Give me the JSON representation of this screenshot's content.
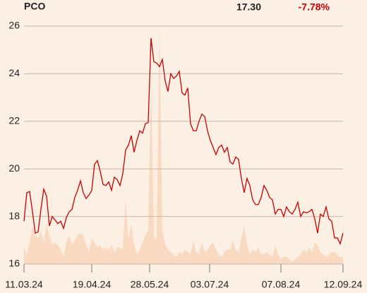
{
  "header": {
    "symbol": "PCO",
    "price": "17.30",
    "change": "-7.78%"
  },
  "chart_data": {
    "type": "line",
    "series": [
      {
        "name": "price",
        "color": "#cc0000",
        "values": [
          17.8,
          19.0,
          19.05,
          18.2,
          17.3,
          17.35,
          18.3,
          19.15,
          18.85,
          17.6,
          18.0,
          17.85,
          17.7,
          17.8,
          17.5,
          17.95,
          18.2,
          18.3,
          18.8,
          19.1,
          19.5,
          19.0,
          18.75,
          18.9,
          19.1,
          20.2,
          20.35,
          19.9,
          19.35,
          19.3,
          19.45,
          19.1,
          19.65,
          19.55,
          19.3,
          19.8,
          20.8,
          21.0,
          21.4,
          20.7,
          21.2,
          21.6,
          21.5,
          21.9,
          21.95,
          25.5,
          24.5,
          24.45,
          24.3,
          24.6,
          23.7,
          23.25,
          24.0,
          23.8,
          23.9,
          24.1,
          23.2,
          23.1,
          23.4,
          21.9,
          21.6,
          21.6,
          22.0,
          22.3,
          22.2,
          21.6,
          21.2,
          20.9,
          20.6,
          20.9,
          21.0,
          20.7,
          20.9,
          20.3,
          20.2,
          20.5,
          20.4,
          19.6,
          19.0,
          19.6,
          19.3,
          18.7,
          18.5,
          18.5,
          18.8,
          19.3,
          19.1,
          18.8,
          18.7,
          18.1,
          18.3,
          18.3,
          18.0,
          18.4,
          18.2,
          18.1,
          18.3,
          18.6,
          18.0,
          18.2,
          18.15,
          18.2,
          18.3,
          17.9,
          17.3,
          18.1,
          18.0,
          18.4,
          17.9,
          17.8,
          17.1,
          17.1,
          16.85,
          17.3
        ]
      },
      {
        "name": "volume",
        "color": "#f9d9c0",
        "axis": "y2",
        "values": [
          7,
          4,
          9,
          16,
          12,
          11,
          14,
          9,
          17,
          12,
          8,
          9,
          8,
          6,
          3,
          9,
          12,
          8,
          10,
          12,
          13,
          12,
          8,
          5,
          11,
          9,
          7,
          8,
          6,
          7,
          6,
          8,
          5,
          7,
          7,
          6,
          27,
          10,
          17,
          8,
          4,
          6,
          9,
          12,
          14,
          76,
          12,
          10,
          100,
          14,
          8,
          6,
          5,
          4,
          3,
          5,
          4,
          6,
          5,
          4,
          10,
          5,
          4,
          9,
          5,
          6,
          8,
          9,
          6,
          4,
          3,
          5,
          6,
          6,
          10,
          6,
          5,
          11,
          16,
          8,
          4,
          6,
          5,
          7,
          4,
          4,
          5,
          4,
          3,
          8,
          4,
          2,
          3,
          3,
          2,
          1,
          2,
          3,
          4,
          6,
          5,
          7,
          5,
          9,
          8,
          5,
          4,
          3,
          4,
          5,
          5,
          4,
          3,
          3
        ]
      }
    ],
    "xlim": [
      0,
      113
    ],
    "xticks": [
      {
        "value": 0,
        "label": "11.03.24"
      },
      {
        "value": 24,
        "label": "19.04.24"
      },
      {
        "value": 44.5,
        "label": "28.05.24"
      },
      {
        "value": 65.75,
        "label": "03.07.24"
      },
      {
        "value": 91,
        "label": "07.08.24"
      },
      {
        "value": 113,
        "label": "12.09.24"
      }
    ],
    "ylim": [
      16,
      26
    ],
    "yticks": [
      16,
      18,
      20,
      22,
      24,
      26
    ],
    "y2lim": [
      0,
      100
    ],
    "grid": true
  }
}
